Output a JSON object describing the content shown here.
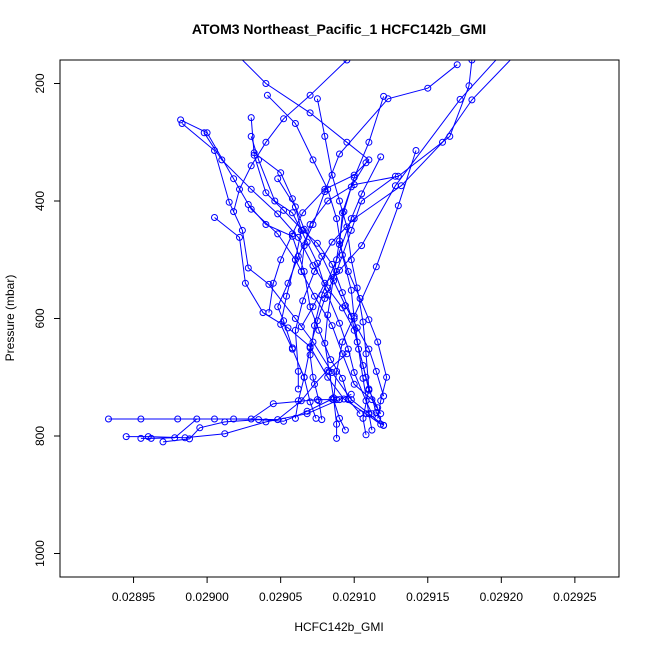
{
  "chart_data": {
    "type": "line",
    "title": "ATOM3 Northeast_Pacific_1 HCFC142b_GMI",
    "xlabel": "HCFC142b_GMI",
    "ylabel": "Pressure (mbar)",
    "xlim": [
      0.0289,
      0.02928
    ],
    "ylim": [
      1040,
      160
    ],
    "y_reversed": true,
    "x_ticks": [
      0.02895,
      0.029,
      0.02905,
      0.0291,
      0.02915,
      0.0292,
      0.02925
    ],
    "x_tick_labels": [
      "0.02895",
      "0.02900",
      "0.02905",
      "0.02910",
      "0.02915",
      "0.02920",
      "0.02925"
    ],
    "y_ticks": [
      200,
      400,
      600,
      800,
      1000
    ],
    "y_tick_labels": [
      "200",
      "400",
      "600",
      "800",
      "1000"
    ],
    "grid": false,
    "series_color": "#0000ff",
    "series": [
      {
        "points": [
          [
            0.028933,
            771
          ],
          [
            0.028955,
            771
          ],
          [
            0.02898,
            771
          ],
          [
            0.029005,
            771
          ],
          [
            0.02903,
            771
          ],
          [
            0.029045,
            745
          ],
          [
            0.029075,
            738
          ],
          [
            0.029088,
            738
          ]
        ]
      },
      {
        "points": [
          [
            0.028945,
            801
          ],
          [
            0.02896,
            801
          ],
          [
            0.028985,
            803
          ],
          [
            0.029012,
            796
          ],
          [
            0.02904,
            776
          ],
          [
            0.029068,
            762
          ],
          [
            0.02909,
            738
          ],
          [
            0.029098,
            729
          ]
        ]
      },
      {
        "points": [
          [
            0.02897,
            810
          ],
          [
            0.028988,
            805
          ],
          [
            0.028995,
            786
          ],
          [
            0.029012,
            776
          ],
          [
            0.029035,
            772
          ],
          [
            0.029052,
            775
          ],
          [
            0.029068,
            758
          ],
          [
            0.029085,
            737
          ]
        ]
      },
      {
        "points": [
          [
            0.028955,
            804
          ],
          [
            0.028962,
            804
          ],
          [
            0.028978,
            803
          ],
          [
            0.028993,
            771
          ],
          [
            0.029018,
            771
          ],
          [
            0.029048,
            772
          ],
          [
            0.029064,
            740
          ],
          [
            0.029073,
            712
          ],
          [
            0.029082,
            688
          ],
          [
            0.029095,
            660
          ]
        ]
      },
      {
        "points": [
          [
            0.028982,
            262
          ],
          [
            0.029,
            284
          ],
          [
            0.029018,
            362
          ],
          [
            0.02903,
            414
          ],
          [
            0.029048,
            456
          ],
          [
            0.02906,
            500
          ],
          [
            0.029073,
            562
          ],
          [
            0.029085,
            612
          ],
          [
            0.029092,
            660
          ],
          [
            0.0291,
            712
          ],
          [
            0.029112,
            738
          ],
          [
            0.029118,
            762
          ]
        ]
      },
      {
        "points": [
          [
            0.028983,
            268
          ],
          [
            0.029005,
            314
          ],
          [
            0.029015,
            402
          ],
          [
            0.029024,
            450
          ],
          [
            0.029028,
            514
          ],
          [
            0.029042,
            542
          ],
          [
            0.02906,
            600
          ],
          [
            0.029072,
            640
          ],
          [
            0.029085,
            692
          ],
          [
            0.029098,
            738
          ],
          [
            0.02911,
            762
          ],
          [
            0.02912,
            782
          ]
        ]
      },
      {
        "points": [
          [
            0.029005,
            428
          ],
          [
            0.029022,
            462
          ],
          [
            0.029026,
            540
          ],
          [
            0.029038,
            590
          ],
          [
            0.029055,
            616
          ],
          [
            0.02907,
            648
          ],
          [
            0.029082,
            700
          ],
          [
            0.029093,
            737
          ],
          [
            0.029108,
            762
          ],
          [
            0.029118,
            780
          ]
        ]
      },
      {
        "points": [
          [
            0.02903,
            258
          ],
          [
            0.029032,
            322
          ],
          [
            0.02904,
            386
          ],
          [
            0.029052,
            416
          ],
          [
            0.029065,
            450
          ],
          [
            0.029075,
            472
          ],
          [
            0.029085,
            508
          ],
          [
            0.029092,
            556
          ],
          [
            0.029098,
            596
          ],
          [
            0.029102,
            640
          ],
          [
            0.029108,
            700
          ],
          [
            0.029115,
            760
          ],
          [
            0.02912,
            782
          ]
        ]
      },
      {
        "points": [
          [
            0.02903,
            290
          ],
          [
            0.029035,
            330
          ],
          [
            0.029046,
            400
          ],
          [
            0.029058,
            420
          ],
          [
            0.029068,
            470
          ],
          [
            0.029075,
            506
          ],
          [
            0.029082,
            560
          ],
          [
            0.02909,
            608
          ],
          [
            0.029096,
            652
          ],
          [
            0.0291,
            692
          ],
          [
            0.029108,
            740
          ],
          [
            0.029112,
            762
          ]
        ]
      },
      {
        "points": [
          [
            0.029041,
            220
          ],
          [
            0.02906,
            268
          ],
          [
            0.029072,
            330
          ],
          [
            0.029082,
            380
          ],
          [
            0.029088,
            430
          ],
          [
            0.029092,
            492
          ],
          [
            0.029098,
            552
          ],
          [
            0.0291,
            600
          ],
          [
            0.029103,
            652
          ],
          [
            0.029106,
            702
          ],
          [
            0.02911,
            762
          ],
          [
            0.029112,
            790
          ]
        ]
      },
      {
        "points": [
          [
            0.029075,
            226
          ],
          [
            0.02908,
            290
          ],
          [
            0.029085,
            356
          ],
          [
            0.02909,
            400
          ],
          [
            0.029095,
            444
          ],
          [
            0.029098,
            500
          ],
          [
            0.029102,
            548
          ],
          [
            0.029106,
            606
          ],
          [
            0.029108,
            660
          ],
          [
            0.02911,
            720
          ],
          [
            0.029106,
            770
          ],
          [
            0.029108,
            798
          ]
        ]
      },
      {
        "points": [
          [
            0.02912,
            222
          ],
          [
            0.02911,
            300
          ],
          [
            0.0291,
            360
          ],
          [
            0.029093,
            418
          ],
          [
            0.02909,
            468
          ],
          [
            0.029086,
            530
          ],
          [
            0.029082,
            594
          ],
          [
            0.02908,
            642
          ],
          [
            0.029083,
            690
          ],
          [
            0.029086,
            735
          ],
          [
            0.029088,
            780
          ],
          [
            0.029088,
            804
          ]
        ]
      },
      {
        "points": [
          [
            0.029118,
            325
          ],
          [
            0.029105,
            388
          ],
          [
            0.029098,
            430
          ],
          [
            0.029088,
            500
          ],
          [
            0.029078,
            560
          ],
          [
            0.029073,
            612
          ],
          [
            0.02907,
            662
          ],
          [
            0.029072,
            700
          ],
          [
            0.029076,
            740
          ],
          [
            0.029078,
            772
          ]
        ]
      },
      {
        "points": [
          [
            0.029128,
            358
          ],
          [
            0.029105,
            400
          ],
          [
            0.029098,
            450
          ],
          [
            0.029088,
            520
          ],
          [
            0.02908,
            566
          ],
          [
            0.029075,
            604
          ],
          [
            0.02907,
            650
          ],
          [
            0.029066,
            700
          ],
          [
            0.029062,
            740
          ],
          [
            0.02906,
            770
          ]
        ]
      },
      {
        "points": [
          [
            0.029142,
            314
          ],
          [
            0.02913,
            408
          ],
          [
            0.029115,
            512
          ],
          [
            0.0291,
            596
          ],
          [
            0.029092,
            640
          ],
          [
            0.029088,
            690
          ],
          [
            0.029086,
            738
          ],
          [
            0.02909,
            770
          ],
          [
            0.029094,
            790
          ]
        ]
      },
      {
        "points": [
          [
            0.029048,
            362
          ],
          [
            0.02906,
            410
          ],
          [
            0.029064,
            450
          ],
          [
            0.02906,
            500
          ],
          [
            0.029054,
            562
          ],
          [
            0.02905,
            610
          ],
          [
            0.029058,
            652
          ],
          [
            0.029066,
            700
          ],
          [
            0.02907,
            742
          ],
          [
            0.029074,
            770
          ]
        ]
      },
      {
        "points": [
          [
            0.029028,
            406
          ],
          [
            0.02904,
            440
          ],
          [
            0.029058,
            460
          ],
          [
            0.029066,
            520
          ],
          [
            0.02907,
            580
          ],
          [
            0.029076,
            620
          ],
          [
            0.029084,
            670
          ],
          [
            0.029092,
            702
          ],
          [
            0.029096,
            738
          ],
          [
            0.029104,
            762
          ]
        ]
      },
      {
        "points": [
          [
            0.028998,
            284
          ],
          [
            0.02901,
            330
          ],
          [
            0.02903,
            380
          ],
          [
            0.029048,
            422
          ],
          [
            0.029062,
            462
          ],
          [
            0.029072,
            510
          ],
          [
            0.029082,
            548
          ],
          [
            0.029092,
            582
          ],
          [
            0.0291,
            620
          ],
          [
            0.029106,
            680
          ],
          [
            0.02911,
            722
          ],
          [
            0.029116,
            752
          ]
        ]
      },
      {
        "points": [
          [
            0.02902,
            150
          ],
          [
            0.02904,
            200
          ],
          [
            0.02907,
            250
          ],
          [
            0.029095,
            300
          ],
          [
            0.02911,
            330
          ],
          [
            0.0291,
            356
          ],
          [
            0.02908,
            380
          ],
          [
            0.029065,
            420
          ],
          [
            0.029058,
            456
          ],
          [
            0.02905,
            500
          ],
          [
            0.029045,
            540
          ],
          [
            0.029042,
            590
          ]
        ]
      },
      {
        "points": [
          [
            0.02921,
            150
          ],
          [
            0.02918,
            228
          ],
          [
            0.02916,
            300
          ],
          [
            0.029132,
            374
          ],
          [
            0.0291,
            430
          ],
          [
            0.029085,
            470
          ],
          [
            0.029073,
            520
          ],
          [
            0.029065,
            570
          ],
          [
            0.02906,
            620
          ],
          [
            0.029062,
            690
          ],
          [
            0.029062,
            720
          ]
        ]
      },
      {
        "points": [
          [
            0.02917,
            168
          ],
          [
            0.02915,
            208
          ],
          [
            0.029123,
            226
          ],
          [
            0.02909,
            320
          ],
          [
            0.02908,
            384
          ],
          [
            0.029072,
            440
          ],
          [
            0.029062,
            494
          ],
          [
            0.029055,
            540
          ],
          [
            0.029048,
            580
          ],
          [
            0.029052,
            604
          ],
          [
            0.029058,
            650
          ]
        ]
      },
      {
        "points": [
          [
            0.0292,
            150
          ],
          [
            0.029172,
            227
          ],
          [
            0.029128,
            374
          ],
          [
            0.029105,
            476
          ],
          [
            0.02909,
            518
          ],
          [
            0.02908,
            540
          ],
          [
            0.029072,
            580
          ],
          [
            0.029064,
            614
          ]
        ]
      },
      {
        "points": [
          [
            0.02918,
            160
          ],
          [
            0.029178,
            204
          ],
          [
            0.029165,
            290
          ],
          [
            0.02913,
            358
          ],
          [
            0.0291,
            372
          ],
          [
            0.029082,
            400
          ],
          [
            0.02907,
            440
          ],
          [
            0.029066,
            476
          ],
          [
            0.029064,
            520
          ]
        ]
      },
      {
        "points": [
          [
            0.029095,
            160
          ],
          [
            0.02907,
            220
          ],
          [
            0.029052,
            260
          ],
          [
            0.02904,
            300
          ],
          [
            0.02903,
            340
          ],
          [
            0.029022,
            380
          ],
          [
            0.029018,
            418
          ]
        ]
      },
      {
        "points": [
          [
            0.029108,
            335
          ],
          [
            0.029098,
            376
          ],
          [
            0.029092,
            420
          ],
          [
            0.02909,
            474
          ],
          [
            0.029096,
            520
          ],
          [
            0.029104,
            566
          ],
          [
            0.02911,
            602
          ],
          [
            0.029116,
            640
          ],
          [
            0.029122,
            700
          ],
          [
            0.029118,
            740
          ],
          [
            0.029116,
            770
          ]
        ]
      },
      {
        "points": [
          [
            0.029032,
            318
          ],
          [
            0.02905,
            352
          ],
          [
            0.029058,
            396
          ],
          [
            0.029066,
            448
          ],
          [
            0.029078,
            494
          ],
          [
            0.029086,
            536
          ],
          [
            0.029094,
            578
          ],
          [
            0.029102,
            616
          ],
          [
            0.02911,
            652
          ],
          [
            0.029115,
            690
          ],
          [
            0.02912,
            732
          ]
        ]
      }
    ]
  }
}
